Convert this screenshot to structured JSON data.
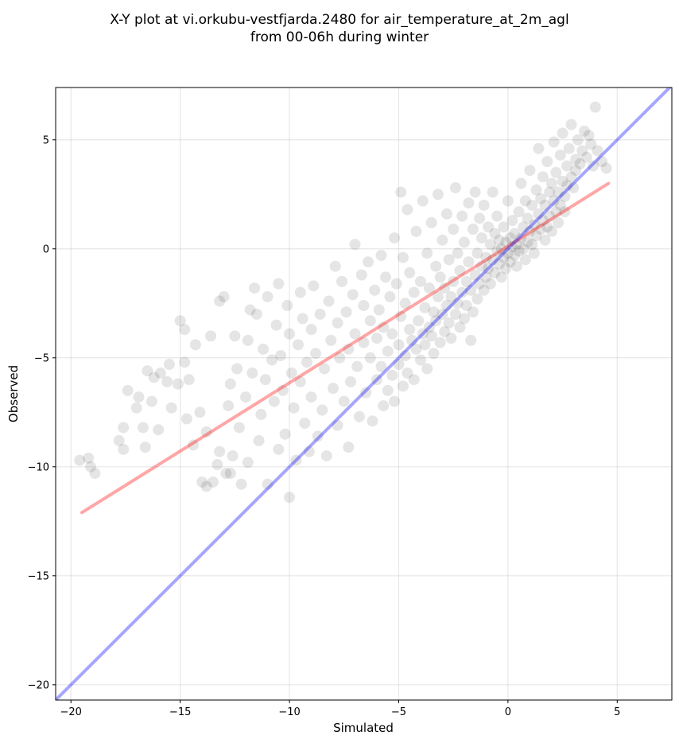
{
  "chart_data": {
    "type": "scatter",
    "title": "X-Y plot at vi.orkubu-vestfjarda.2480 for air_temperature_at_2m_agl",
    "subtitle": "from 00-06h during winter",
    "xlabel": "Simulated",
    "ylabel": "Observed",
    "xlim": [
      -20.7,
      7.5
    ],
    "ylim": [
      -20.7,
      7.4
    ],
    "xticks": [
      -20,
      -15,
      -10,
      -5,
      0,
      5
    ],
    "yticks": [
      -20,
      -15,
      -10,
      -5,
      0,
      5
    ],
    "xtick_labels": [
      "−20",
      "−15",
      "−10",
      "−5",
      "0",
      "5"
    ],
    "ytick_labels": [
      "−20",
      "−15",
      "−10",
      "−5",
      "0",
      "5"
    ],
    "grid": true,
    "legend": "none",
    "point_color": "#000000",
    "point_alpha": 0.1,
    "points": [
      [
        -19.6,
        -9.7
      ],
      [
        -19.2,
        -9.6
      ],
      [
        -19.1,
        -10.0
      ],
      [
        -18.9,
        -10.3
      ],
      [
        -17.8,
        -8.8
      ],
      [
        -17.6,
        -9.2
      ],
      [
        -17.6,
        -8.2
      ],
      [
        -17.4,
        -6.5
      ],
      [
        -17.0,
        -7.3
      ],
      [
        -16.9,
        -6.8
      ],
      [
        -16.7,
        -8.2
      ],
      [
        -16.6,
        -9.1
      ],
      [
        -16.5,
        -5.6
      ],
      [
        -16.3,
        -7.0
      ],
      [
        -16.2,
        -5.9
      ],
      [
        -16.0,
        -8.3
      ],
      [
        -15.9,
        -5.7
      ],
      [
        -15.6,
        -6.1
      ],
      [
        -15.5,
        -5.3
      ],
      [
        -15.4,
        -7.3
      ],
      [
        -15.1,
        -6.2
      ],
      [
        -15.0,
        -3.3
      ],
      [
        -14.8,
        -5.2
      ],
      [
        -14.8,
        -3.7
      ],
      [
        -14.7,
        -7.8
      ],
      [
        -14.6,
        -6.0
      ],
      [
        -14.4,
        -9.0
      ],
      [
        -14.3,
        -4.4
      ],
      [
        -14.1,
        -7.5
      ],
      [
        -14.0,
        -10.7
      ],
      [
        -13.8,
        -10.9
      ],
      [
        -13.8,
        -8.4
      ],
      [
        -13.6,
        -4.0
      ],
      [
        -13.5,
        -10.7
      ],
      [
        -13.3,
        -9.9
      ],
      [
        -13.2,
        -2.4
      ],
      [
        -13.2,
        -9.3
      ],
      [
        -13.0,
        -2.2
      ],
      [
        -12.9,
        -10.3
      ],
      [
        -12.8,
        -7.2
      ],
      [
        -12.7,
        -6.2
      ],
      [
        -12.7,
        -10.3
      ],
      [
        -12.6,
        -9.5
      ],
      [
        -12.5,
        -4.0
      ],
      [
        -12.4,
        -5.5
      ],
      [
        -12.3,
        -8.2
      ],
      [
        -12.2,
        -10.8
      ],
      [
        -12.0,
        -6.8
      ],
      [
        -11.9,
        -4.2
      ],
      [
        -11.9,
        -9.8
      ],
      [
        -11.8,
        -2.8
      ],
      [
        -11.7,
        -5.7
      ],
      [
        -11.6,
        -1.8
      ],
      [
        -11.5,
        -3.0
      ],
      [
        -11.4,
        -8.8
      ],
      [
        -11.3,
        -7.6
      ],
      [
        -11.2,
        -4.6
      ],
      [
        -11.1,
        -6.0
      ],
      [
        -11.0,
        -10.8
      ],
      [
        -11.0,
        -2.2
      ],
      [
        -10.8,
        -5.1
      ],
      [
        -10.7,
        -7.0
      ],
      [
        -10.6,
        -3.5
      ],
      [
        -10.5,
        -1.6
      ],
      [
        -10.5,
        -9.2
      ],
      [
        -10.4,
        -4.9
      ],
      [
        -10.3,
        -6.5
      ],
      [
        -10.2,
        -8.5
      ],
      [
        -10.1,
        -2.6
      ],
      [
        -10.0,
        -11.4
      ],
      [
        -10.0,
        -3.9
      ],
      [
        -9.9,
        -5.7
      ],
      [
        -9.8,
        -7.3
      ],
      [
        -9.7,
        -9.7
      ],
      [
        -9.6,
        -4.4
      ],
      [
        -9.5,
        -2.0
      ],
      [
        -9.5,
        -6.1
      ],
      [
        -9.4,
        -3.2
      ],
      [
        -9.3,
        -8.0
      ],
      [
        -9.2,
        -5.2
      ],
      [
        -9.1,
        -9.3
      ],
      [
        -9.0,
        -3.7
      ],
      [
        -9.0,
        -6.8
      ],
      [
        -8.9,
        -1.7
      ],
      [
        -8.8,
        -4.8
      ],
      [
        -8.7,
        -8.6
      ],
      [
        -8.6,
        -3.0
      ],
      [
        -8.5,
        -7.4
      ],
      [
        -8.4,
        -5.5
      ],
      [
        -8.3,
        -9.5
      ],
      [
        -8.2,
        -2.4
      ],
      [
        -8.1,
        -4.2
      ],
      [
        -8.0,
        -6.4
      ],
      [
        -7.9,
        -0.8
      ],
      [
        -7.8,
        -3.4
      ],
      [
        -7.8,
        -8.1
      ],
      [
        -7.7,
        -5.0
      ],
      [
        -7.6,
        -1.5
      ],
      [
        -7.5,
        -7.0
      ],
      [
        -7.4,
        -2.9
      ],
      [
        -7.3,
        -4.6
      ],
      [
        -7.3,
        -9.1
      ],
      [
        -7.2,
        -6.1
      ],
      [
        -7.1,
        -2.1
      ],
      [
        -7.0,
        -3.9
      ],
      [
        -7.0,
        0.2
      ],
      [
        -6.9,
        -5.4
      ],
      [
        -6.8,
        -7.7
      ],
      [
        -6.7,
        -1.2
      ],
      [
        -6.6,
        -4.3
      ],
      [
        -6.6,
        -2.6
      ],
      [
        -6.5,
        -6.6
      ],
      [
        -6.4,
        -0.6
      ],
      [
        -6.3,
        -3.3
      ],
      [
        -6.3,
        -5.0
      ],
      [
        -6.2,
        -7.9
      ],
      [
        -6.1,
        -1.9
      ],
      [
        -6.0,
        -4.1
      ],
      [
        -6.0,
        -6.0
      ],
      [
        -5.9,
        -2.8
      ],
      [
        -5.8,
        -0.3
      ],
      [
        -5.8,
        -5.4
      ],
      [
        -5.7,
        -3.6
      ],
      [
        -5.7,
        -7.2
      ],
      [
        -5.6,
        -1.3
      ],
      [
        -5.5,
        -4.7
      ],
      [
        -5.5,
        -6.5
      ],
      [
        -5.4,
        -2.2
      ],
      [
        -5.3,
        -3.9
      ],
      [
        -5.3,
        -5.8
      ],
      [
        -5.2,
        0.5
      ],
      [
        -5.2,
        -7.0
      ],
      [
        -5.1,
        -1.6
      ],
      [
        -5.0,
        -4.4
      ],
      [
        -5.0,
        -5.3
      ],
      [
        -4.9,
        2.6
      ],
      [
        -4.9,
        -3.1
      ],
      [
        -4.8,
        -6.3
      ],
      [
        -4.8,
        -0.4
      ],
      [
        -4.7,
        -4.9
      ],
      [
        -4.7,
        -2.5
      ],
      [
        -4.6,
        1.8
      ],
      [
        -4.6,
        -5.7
      ],
      [
        -4.5,
        -3.7
      ],
      [
        -4.5,
        -1.1
      ],
      [
        -4.4,
        -4.2
      ],
      [
        -4.3,
        -6.0
      ],
      [
        -4.3,
        -2.0
      ],
      [
        -4.2,
        0.8
      ],
      [
        -4.2,
        -4.6
      ],
      [
        -4.1,
        -3.3
      ],
      [
        -4.0,
        -5.1
      ],
      [
        -4.0,
        -1.5
      ],
      [
        -3.9,
        -3.9
      ],
      [
        -3.9,
        2.2
      ],
      [
        -3.8,
        -4.4
      ],
      [
        -3.8,
        -2.7
      ],
      [
        -3.7,
        -0.2
      ],
      [
        -3.7,
        -5.5
      ],
      [
        -3.6,
        -3.6
      ],
      [
        -3.6,
        -1.8
      ],
      [
        -3.5,
        -4.0
      ],
      [
        -3.5,
        1.2
      ],
      [
        -3.4,
        -2.9
      ],
      [
        -3.4,
        -4.8
      ],
      [
        -3.3,
        -0.8
      ],
      [
        -3.3,
        -3.3
      ],
      [
        -3.2,
        2.5
      ],
      [
        -3.2,
        -2.2
      ],
      [
        -3.1,
        -4.3
      ],
      [
        -3.1,
        -1.3
      ],
      [
        -3.0,
        -3.0
      ],
      [
        -3.0,
        0.4
      ],
      [
        -2.9,
        -3.8
      ],
      [
        -2.9,
        -1.8
      ],
      [
        -2.8,
        -2.6
      ],
      [
        -2.8,
        1.6
      ],
      [
        -2.7,
        -3.4
      ],
      [
        -2.7,
        -0.5
      ],
      [
        -2.6,
        -2.2
      ],
      [
        -2.6,
        -4.1
      ],
      [
        -2.5,
        0.9
      ],
      [
        -2.5,
        -1.5
      ],
      [
        -2.4,
        -3.0
      ],
      [
        -2.4,
        2.8
      ],
      [
        -2.3,
        -2.5
      ],
      [
        -2.3,
        -0.2
      ],
      [
        -2.2,
        -3.6
      ],
      [
        -2.2,
        -1.0
      ],
      [
        -2.1,
        1.5
      ],
      [
        -2.1,
        -2.0
      ],
      [
        -2.0,
        -3.2
      ],
      [
        -2.0,
        0.3
      ],
      [
        -1.9,
        -1.5
      ],
      [
        -1.9,
        -2.6
      ],
      [
        -1.8,
        2.1
      ],
      [
        -1.8,
        -0.6
      ],
      [
        -1.7,
        -4.2
      ],
      [
        -1.7,
        -1.9
      ],
      [
        -1.6,
        0.9
      ],
      [
        -1.6,
        -2.9
      ],
      [
        -1.5,
        -1.2
      ],
      [
        -1.5,
        2.6
      ],
      [
        -1.4,
        -0.2
      ],
      [
        -1.4,
        -2.3
      ],
      [
        -1.3,
        1.4
      ],
      [
        -1.3,
        -1.6
      ],
      [
        -1.2,
        -0.8
      ],
      [
        -1.2,
        0.5
      ],
      [
        -1.1,
        -1.9
      ],
      [
        -1.1,
        2.0
      ],
      [
        -1.0,
        -0.4
      ],
      [
        -1.0,
        -1.3
      ],
      [
        -0.9,
        1.0
      ],
      [
        -0.9,
        -0.9
      ],
      [
        -0.8,
        0.2
      ],
      [
        -0.8,
        -1.6
      ],
      [
        -0.7,
        2.6
      ],
      [
        -0.7,
        -0.5
      ],
      [
        -0.6,
        0.7
      ],
      [
        -0.6,
        -1.1
      ],
      [
        -0.5,
        -0.1
      ],
      [
        -0.5,
        1.5
      ],
      [
        -0.4,
        -0.7
      ],
      [
        -0.4,
        0.4
      ],
      [
        -0.3,
        -1.3
      ],
      [
        -0.3,
        0.0
      ],
      [
        -0.2,
        1.0
      ],
      [
        -0.2,
        -0.4
      ],
      [
        -0.1,
        0.3
      ],
      [
        -0.1,
        -0.9
      ],
      [
        0.0,
        2.2
      ],
      [
        0.0,
        -0.2
      ],
      [
        0.1,
        0.5
      ],
      [
        0.1,
        -0.6
      ],
      [
        0.2,
        0.1
      ],
      [
        0.2,
        1.3
      ],
      [
        0.3,
        -0.3
      ],
      [
        0.3,
        0.7
      ],
      [
        0.4,
        -0.8
      ],
      [
        0.4,
        0.2
      ],
      [
        0.5,
        1.7
      ],
      [
        0.5,
        -0.1
      ],
      [
        0.6,
        0.5
      ],
      [
        0.6,
        3.0
      ],
      [
        0.7,
        0.0
      ],
      [
        0.7,
        1.0
      ],
      [
        0.8,
        -0.5
      ],
      [
        0.8,
        2.2
      ],
      [
        0.9,
        0.3
      ],
      [
        0.9,
        1.4
      ],
      [
        1.0,
        0.8
      ],
      [
        1.0,
        3.6
      ],
      [
        1.1,
        0.2
      ],
      [
        1.1,
        2.0
      ],
      [
        1.2,
        1.1
      ],
      [
        1.2,
        -0.2
      ],
      [
        1.3,
        2.7
      ],
      [
        1.3,
        0.6
      ],
      [
        1.4,
        1.6
      ],
      [
        1.4,
        4.6
      ],
      [
        1.5,
        0.9
      ],
      [
        1.5,
        2.3
      ],
      [
        1.6,
        1.3
      ],
      [
        1.6,
        3.3
      ],
      [
        1.7,
        0.4
      ],
      [
        1.7,
        2.0
      ],
      [
        1.8,
        1.0
      ],
      [
        1.8,
        4.0
      ],
      [
        1.9,
        2.6
      ],
      [
        1.9,
        1.5
      ],
      [
        2.0,
        3.0
      ],
      [
        2.0,
        0.8
      ],
      [
        2.1,
        2.2
      ],
      [
        2.1,
        4.9
      ],
      [
        2.2,
        1.7
      ],
      [
        2.2,
        3.5
      ],
      [
        2.3,
        2.6
      ],
      [
        2.3,
        1.2
      ],
      [
        2.4,
        4.3
      ],
      [
        2.4,
        2.0
      ],
      [
        2.5,
        3.1
      ],
      [
        2.5,
        5.3
      ],
      [
        2.6,
        2.4
      ],
      [
        2.6,
        1.7
      ],
      [
        2.7,
        3.8
      ],
      [
        2.7,
        2.9
      ],
      [
        2.8,
        4.6
      ],
      [
        2.9,
        3.3
      ],
      [
        2.9,
        5.7
      ],
      [
        3.0,
        2.8
      ],
      [
        3.1,
        4.1
      ],
      [
        3.1,
        3.6
      ],
      [
        3.2,
        5.0
      ],
      [
        3.3,
        3.9
      ],
      [
        3.4,
        4.5
      ],
      [
        3.5,
        5.4
      ],
      [
        3.6,
        4.2
      ],
      [
        3.7,
        5.2
      ],
      [
        3.8,
        4.8
      ],
      [
        3.9,
        3.8
      ],
      [
        4.0,
        6.5
      ],
      [
        4.1,
        4.5
      ],
      [
        4.3,
        4.0
      ],
      [
        4.5,
        3.7
      ]
    ],
    "lines": [
      {
        "color": "#ff0000",
        "alpha": 0.35,
        "x": [
          -19.5,
          4.6
        ],
        "y": [
          -12.1,
          3.0
        ]
      },
      {
        "color": "#0000ff",
        "alpha": 0.35,
        "x": [
          -20.7,
          7.5
        ],
        "y": [
          -20.7,
          7.5
        ]
      }
    ]
  }
}
